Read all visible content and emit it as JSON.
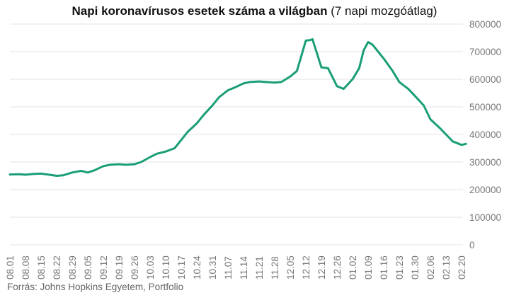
{
  "title": {
    "bold": "Napi koronavírusos esetek száma a világban",
    "rest": " (7 napi mozgóátlag)"
  },
  "source": "Forrás: Johns Hopkins Egyetem, Portfolio",
  "colors": {
    "line": "#1a9e77",
    "grid": "#e3e3e3",
    "text": "#777777"
  },
  "chart_data": {
    "type": "line",
    "title": "Napi koronavírusos esetek száma a világban (7 napi mozgóátlag)",
    "xlabel": "",
    "ylabel": "",
    "ylim": [
      0,
      800000
    ],
    "y_ticks": [
      0,
      100000,
      200000,
      300000,
      400000,
      500000,
      600000,
      700000,
      800000
    ],
    "y_tick_labels": [
      "0",
      "100000",
      "200000",
      "300000",
      "400000",
      "500000",
      "600000",
      "700000",
      "800000"
    ],
    "x_tick_labels": [
      "08.01",
      "08.08",
      "08.15",
      "08.22",
      "08.29",
      "09.05",
      "09.12",
      "09.19",
      "09.26",
      "10.03",
      "10.10",
      "10.17",
      "10.24",
      "10.31",
      "11.07",
      "11.14",
      "11.21",
      "11.28",
      "12.05",
      "12.12",
      "12.19",
      "12.26",
      "01.02",
      "01.09",
      "01.16",
      "01.23",
      "01.30",
      "02.06",
      "02.13",
      "02.20"
    ],
    "grid": "horizontal",
    "legend": "none",
    "series": [
      {
        "x": [
          "08.01",
          "08.05",
          "08.08",
          "08.12",
          "08.15",
          "08.18",
          "08.22",
          "08.25",
          "08.29",
          "09.02",
          "09.05",
          "09.08",
          "09.12",
          "09.15",
          "09.19",
          "09.22",
          "09.26",
          "09.29",
          "10.03",
          "10.06",
          "10.10",
          "10.14",
          "10.17",
          "10.20",
          "10.24",
          "10.27",
          "10.31",
          "11.03",
          "11.07",
          "11.10",
          "11.14",
          "11.17",
          "11.21",
          "11.24",
          "11.28",
          "12.01",
          "12.05",
          "12.08",
          "12.12",
          "12.14",
          "12.15",
          "12.19",
          "12.22",
          "12.26",
          "12.29",
          "01.02",
          "01.05",
          "01.07",
          "01.09",
          "01.11",
          "01.13",
          "01.16",
          "01.20",
          "01.23",
          "01.27",
          "01.30",
          "02.03",
          "02.06",
          "02.10",
          "02.13",
          "02.16",
          "02.20",
          "02.22"
        ],
        "values": [
          255000,
          256000,
          254000,
          257000,
          258000,
          255000,
          250000,
          252000,
          262000,
          268000,
          262000,
          270000,
          285000,
          290000,
          292000,
          290000,
          292000,
          300000,
          318000,
          330000,
          338000,
          350000,
          380000,
          410000,
          440000,
          470000,
          505000,
          535000,
          560000,
          570000,
          585000,
          590000,
          592000,
          590000,
          588000,
          590000,
          610000,
          630000,
          740000,
          742000,
          745000,
          643000,
          640000,
          575000,
          565000,
          600000,
          640000,
          705000,
          735000,
          725000,
          705000,
          675000,
          630000,
          590000,
          565000,
          540000,
          505000,
          455000,
          425000,
          400000,
          375000,
          362000,
          366000
        ]
      }
    ]
  }
}
